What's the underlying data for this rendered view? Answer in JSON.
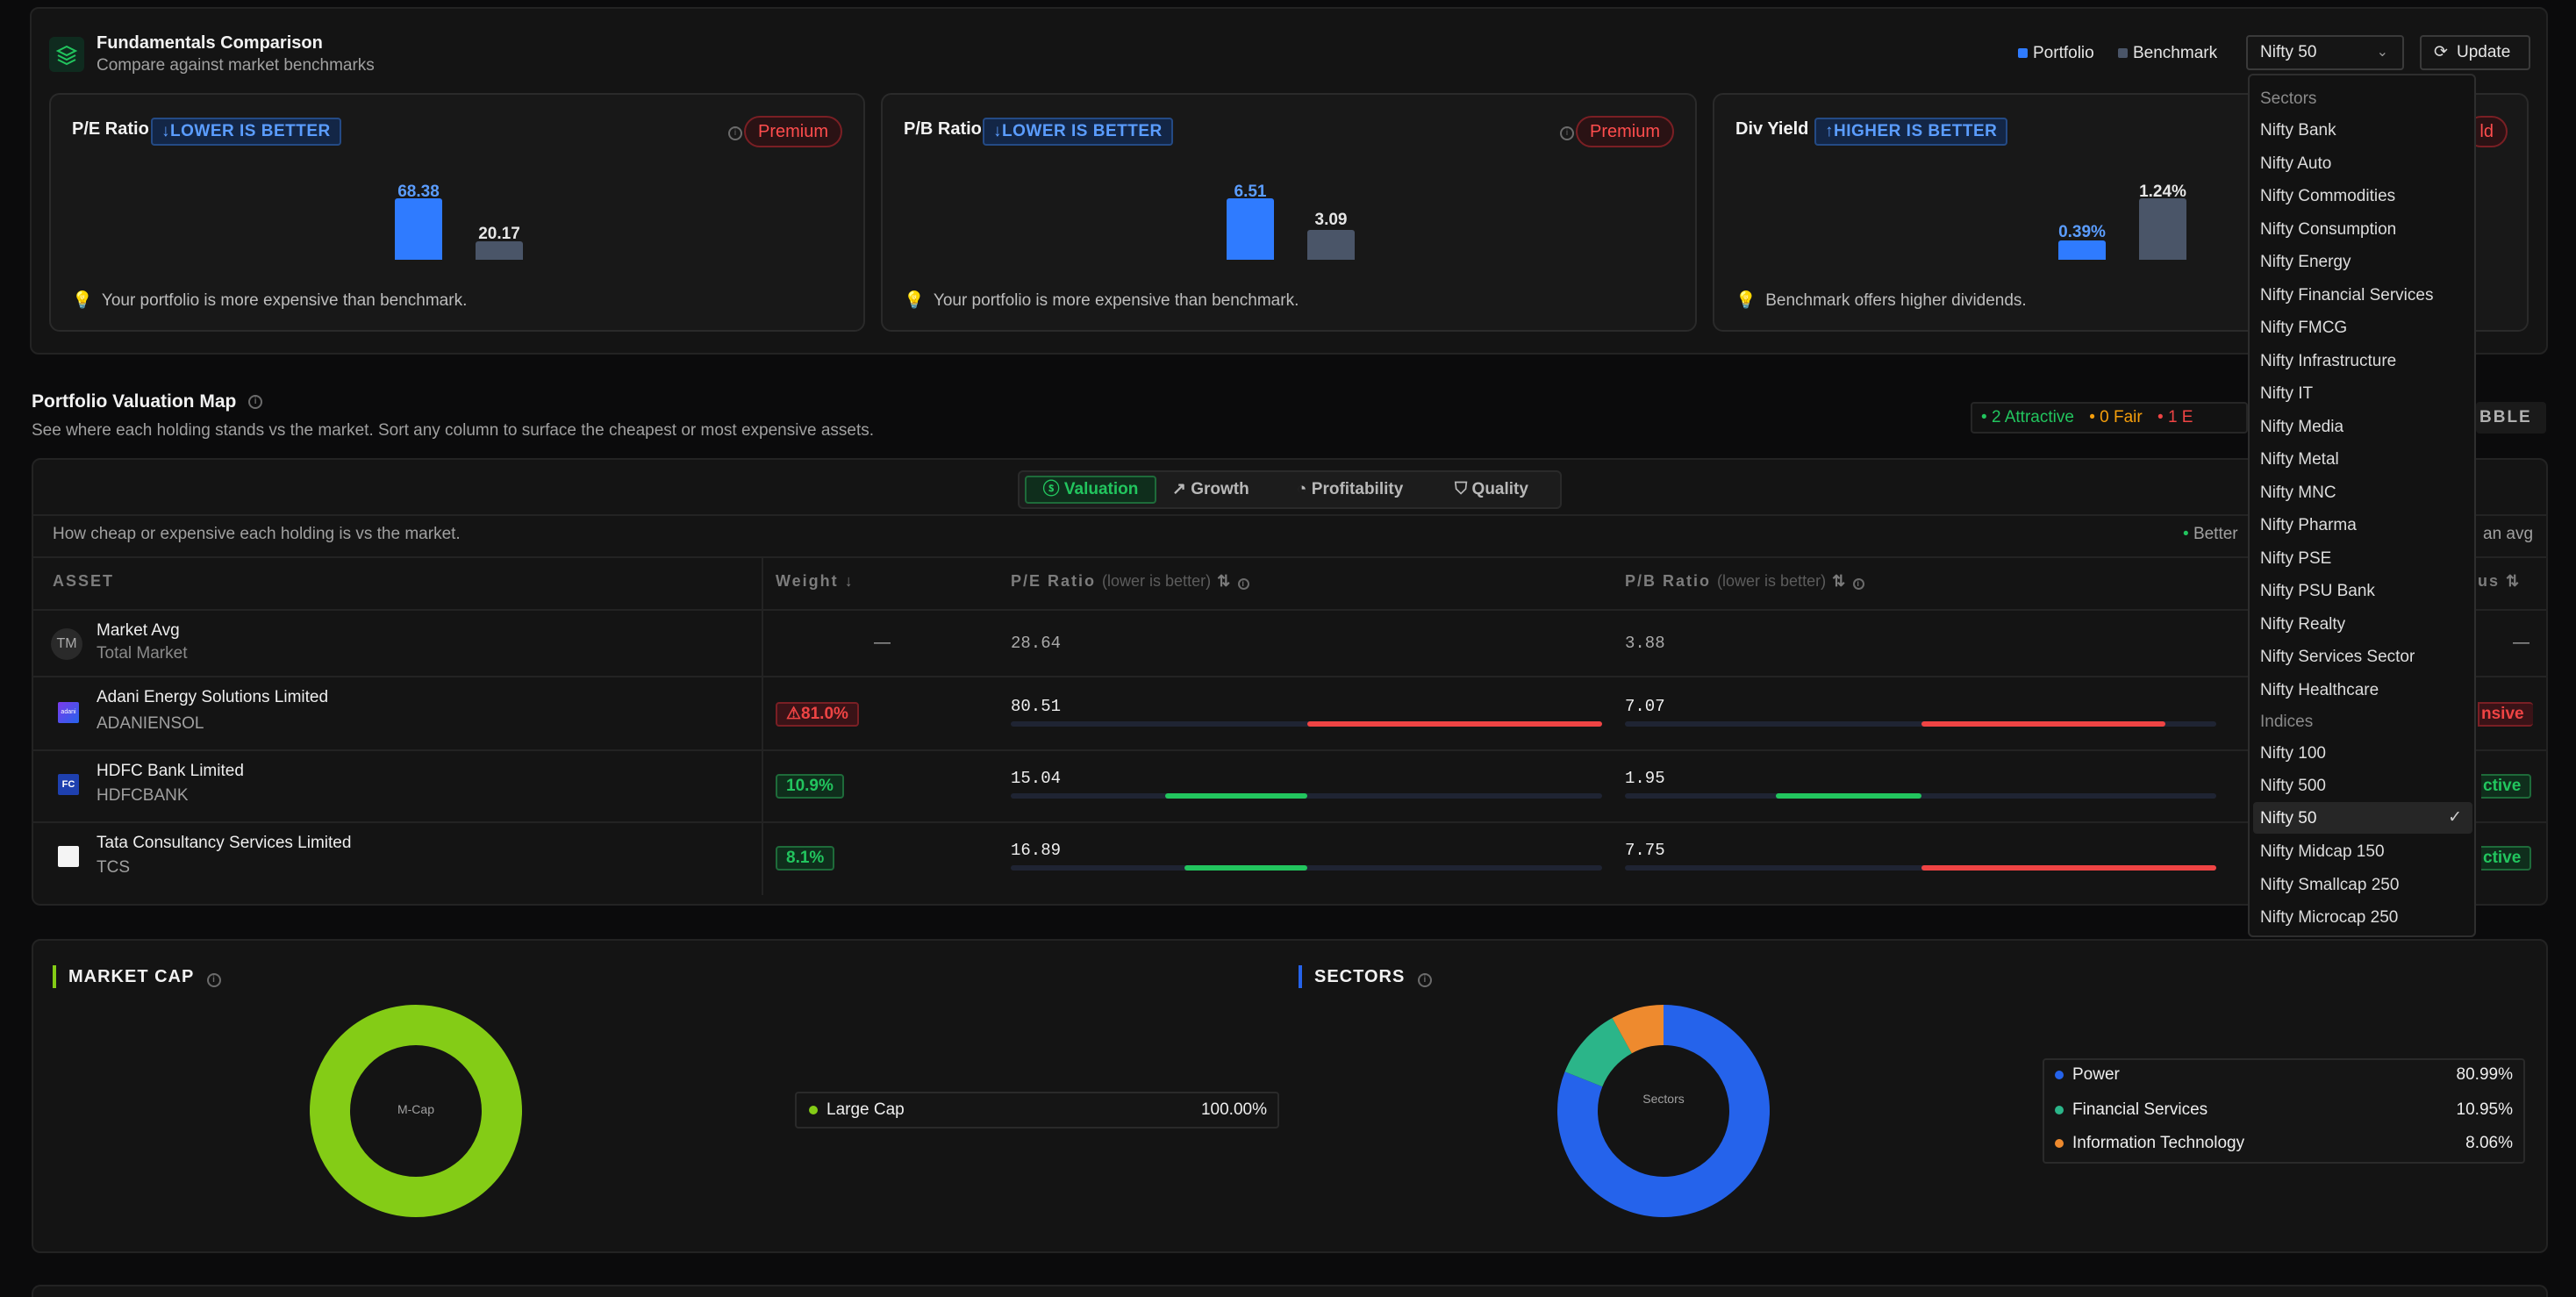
{
  "header": {
    "title": "Fundamentals Comparison",
    "subtitle": "Compare against market benchmarks",
    "legend_portfolio": "Portfolio",
    "legend_benchmark": "Benchmark",
    "benchmark_select": "Nifty 50",
    "update_label": "Update"
  },
  "cards": [
    {
      "title": "P/E Ratio",
      "badge": "↓LOWER IS BETTER",
      "premium": "Premium",
      "portfolio": "68.38",
      "benchmark": "20.17",
      "hint": "Your portfolio is more expensive than benchmark."
    },
    {
      "title": "P/B Ratio",
      "badge": "↓LOWER IS BETTER",
      "premium": "Premium",
      "portfolio": "6.51",
      "benchmark": "3.09",
      "hint": "Your portfolio is more expensive than benchmark."
    },
    {
      "title": "Div Yield",
      "badge": "↑HIGHER IS BETTER",
      "premium": "ld",
      "portfolio": "0.39%",
      "benchmark": "1.24%",
      "hint": "Benchmark offers higher dividends."
    }
  ],
  "valuation_map": {
    "title": "Portfolio Valuation Map",
    "subtitle": "See where each holding stands vs the market. Sort any column to surface the cheapest or most expensive assets.",
    "summary_attractive": "2 Attractive",
    "summary_fair": "0 Fair",
    "summary_expensive": "1 E",
    "summary_bubble": "BBLE",
    "tabs": [
      "Valuation",
      "Growth",
      "Profitability",
      "Quality"
    ],
    "description": "How cheap or expensive each holding is vs the market.",
    "legend_better": "Better",
    "legend_avg": "an avg",
    "columns": {
      "asset": "ASSET",
      "weight": "Weight",
      "pe": "P/E Ratio",
      "pe_hint": "(lower is better)",
      "pb": "P/B Ratio",
      "pb_hint": "(lower is better)",
      "status": "tus"
    },
    "market_avg": {
      "initials": "TM",
      "name": "Market Avg",
      "sub": "Total Market",
      "weight": "—",
      "pe": "28.64",
      "pb": "3.88",
      "status": "—"
    },
    "rows": [
      {
        "name": "Adani Energy Solutions Limited",
        "ticker": "ADANIENSOL",
        "logo": "adani",
        "weight": "⚠81.0%",
        "pe": "80.51",
        "pb": "7.07",
        "status": "nsive"
      },
      {
        "name": "HDFC Bank Limited",
        "ticker": "HDFCBANK",
        "logo": "FC",
        "weight": "10.9%",
        "pe": "15.04",
        "pb": "1.95",
        "status": "ctive"
      },
      {
        "name": "Tata Consultancy Services Limited",
        "ticker": "TCS",
        "logo": "",
        "weight": "8.1%",
        "pe": "16.89",
        "pb": "7.75",
        "status": "ctive"
      }
    ]
  },
  "market_cap": {
    "title": "MARKET CAP",
    "center": "M-Cap",
    "items": [
      {
        "label": "Large Cap",
        "value": "100.00%",
        "color": "#84cc16"
      }
    ]
  },
  "sectors": {
    "title": "SECTORS",
    "center": "Sectors",
    "items": [
      {
        "label": "Power",
        "value": "80.99%",
        "color": "#2563eb"
      },
      {
        "label": "Financial Services",
        "value": "10.95%",
        "color": "#2bb589"
      },
      {
        "label": "Information Technology",
        "value": "8.06%",
        "color": "#ee8a2e"
      }
    ]
  },
  "dropdown": {
    "section_sectors": "Sectors",
    "sectors": [
      "Nifty Bank",
      "Nifty Auto",
      "Nifty Commodities",
      "Nifty Consumption",
      "Nifty Energy",
      "Nifty Financial Services",
      "Nifty FMCG",
      "Nifty Infrastructure",
      "Nifty IT",
      "Nifty Media",
      "Nifty Metal",
      "Nifty MNC",
      "Nifty Pharma",
      "Nifty PSE",
      "Nifty PSU Bank",
      "Nifty Realty",
      "Nifty Services Sector",
      "Nifty Healthcare"
    ],
    "section_indices": "Indices",
    "indices": [
      "Nifty 100",
      "Nifty 500",
      "Nifty 50",
      "Nifty Midcap 150",
      "Nifty Smallcap 250",
      "Nifty Microcap 250"
    ],
    "selected": "Nifty 50"
  },
  "colors": {
    "portfolio": "#2f7bff",
    "benchmark": "#4a5568",
    "positive": "#22c55e",
    "negative": "#ef4444"
  }
}
